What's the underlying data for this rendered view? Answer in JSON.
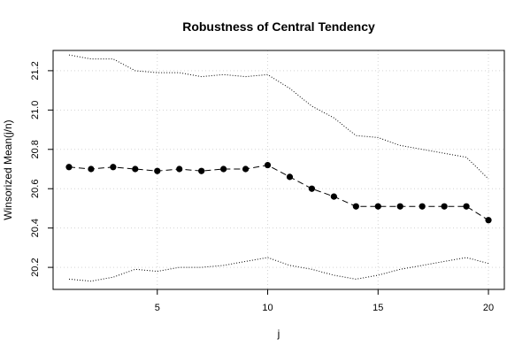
{
  "chart_data": {
    "type": "line",
    "title": "Robustness of Central Tendency",
    "xlabel": "j",
    "ylabel": "Winsorized Mean(j/n)",
    "xlim": [
      0.28,
      20.72
    ],
    "ylim": [
      20.088,
      21.303
    ],
    "xticks": [
      5,
      10,
      15,
      20
    ],
    "yticks": [
      20.2,
      20.4,
      20.6,
      20.8,
      21.0,
      21.2
    ],
    "ytick_labels": [
      "20.2",
      "20.4",
      "20.6",
      "20.8",
      "21.0",
      "21.2"
    ],
    "grid": true,
    "x": [
      1,
      2,
      3,
      4,
      5,
      6,
      7,
      8,
      9,
      10,
      11,
      12,
      13,
      14,
      15,
      16,
      17,
      18,
      19,
      20
    ],
    "series": [
      {
        "role": "mean",
        "style": "dashed-line-with-points",
        "values": [
          20.71,
          20.7,
          20.71,
          20.7,
          20.69,
          20.7,
          20.69,
          20.7,
          20.7,
          20.72,
          20.66,
          20.6,
          20.56,
          20.51,
          20.51,
          20.51,
          20.51,
          20.51,
          20.51,
          20.44
        ]
      },
      {
        "role": "upper",
        "style": "dotted",
        "values": [
          21.28,
          21.26,
          21.26,
          21.2,
          21.19,
          21.19,
          21.17,
          21.18,
          21.17,
          21.18,
          21.11,
          21.02,
          20.96,
          20.87,
          20.86,
          20.82,
          20.8,
          20.78,
          20.76,
          20.65
        ]
      },
      {
        "role": "lower",
        "style": "dotted",
        "values": [
          20.14,
          20.13,
          20.15,
          20.19,
          20.18,
          20.2,
          20.2,
          20.21,
          20.23,
          20.25,
          20.21,
          20.19,
          20.16,
          20.14,
          20.16,
          20.19,
          20.21,
          20.23,
          20.25,
          20.22
        ]
      }
    ]
  }
}
